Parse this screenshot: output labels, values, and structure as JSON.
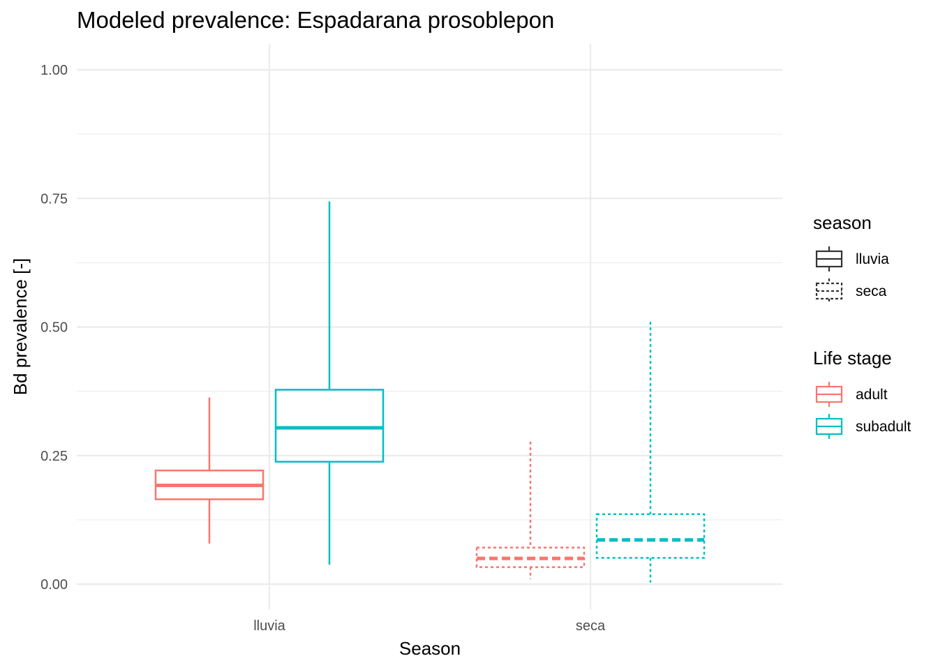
{
  "chart_data": {
    "type": "boxplot",
    "title": "Modeled prevalence: Espadarana prosoblepon",
    "xlabel": "Season",
    "ylabel": "Bd prevalence [-]",
    "ylim": [
      -0.04,
      1.05
    ],
    "yticks": [
      "0.00",
      "0.25",
      "0.50",
      "0.75",
      "1.00"
    ],
    "categories": [
      "lluvia",
      "seca"
    ],
    "grid": true,
    "legend_position": "right",
    "legends": [
      {
        "title": "season",
        "items": [
          {
            "label": "lluvia",
            "linetype": "solid"
          },
          {
            "label": "seca",
            "linetype": "dashed"
          }
        ]
      },
      {
        "title": "Life stage",
        "items": [
          {
            "label": "adult",
            "color": "#F8766D"
          },
          {
            "label": "subadult",
            "color": "#00BFC4"
          }
        ]
      }
    ],
    "boxes": [
      {
        "season": "lluvia",
        "life_stage": "adult",
        "min": 0.079,
        "q1": 0.165,
        "median": 0.192,
        "q3": 0.221,
        "max": 0.363
      },
      {
        "season": "lluvia",
        "life_stage": "subadult",
        "min": 0.038,
        "q1": 0.238,
        "median": 0.304,
        "q3": 0.378,
        "max": 0.744
      },
      {
        "season": "seca",
        "life_stage": "adult",
        "min": 0.01,
        "q1": 0.033,
        "median": 0.05,
        "q3": 0.071,
        "max": 0.277
      },
      {
        "season": "seca",
        "life_stage": "subadult",
        "min": 0.003,
        "q1": 0.051,
        "median": 0.086,
        "q3": 0.136,
        "max": 0.51
      }
    ]
  },
  "colors": {
    "adult": "#F8766D",
    "subadult": "#00BFC4",
    "grid": "#EBEBEB",
    "legend_key": "#333333"
  }
}
